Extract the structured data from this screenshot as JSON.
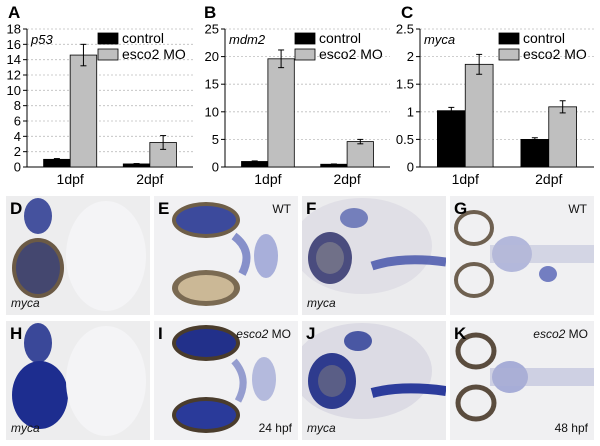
{
  "legend": {
    "control": "control",
    "treated": "esco2 MO"
  },
  "colors": {
    "control": "#000000",
    "treated": "#bfbfbf",
    "stain": "#2a3a9a"
  },
  "chart_data": [
    {
      "panel": "A",
      "gene": "p53",
      "type": "bar",
      "categories": [
        "1dpf",
        "2dpf"
      ],
      "series": [
        {
          "name": "control",
          "values": [
            1.0,
            0.4
          ],
          "errors": [
            0.1,
            0.05
          ]
        },
        {
          "name": "esco2 MO",
          "values": [
            14.6,
            3.2
          ],
          "errors": [
            1.4,
            0.9
          ]
        }
      ],
      "ylim": [
        0,
        18
      ],
      "yticks": [
        "0",
        "2",
        "4",
        "6",
        "8",
        "10",
        "12",
        "14",
        "16",
        "18"
      ],
      "grid": true,
      "legend": "top-right"
    },
    {
      "panel": "B",
      "gene": "mdm2",
      "type": "bar",
      "categories": [
        "1dpf",
        "2dpf"
      ],
      "series": [
        {
          "name": "control",
          "values": [
            1.0,
            0.5
          ],
          "errors": [
            0.1,
            0.05
          ]
        },
        {
          "name": "esco2 MO",
          "values": [
            19.6,
            4.6
          ],
          "errors": [
            1.6,
            0.4
          ]
        }
      ],
      "ylim": [
        0,
        25
      ],
      "yticks": [
        "0",
        "5",
        "10",
        "15",
        "20",
        "25"
      ],
      "grid": true,
      "legend": "top-right"
    },
    {
      "panel": "C",
      "gene": "myca",
      "type": "bar",
      "categories": [
        "1dpf",
        "2dpf"
      ],
      "series": [
        {
          "name": "control",
          "values": [
            1.02,
            0.5
          ],
          "errors": [
            0.06,
            0.03
          ]
        },
        {
          "name": "esco2 MO",
          "values": [
            1.86,
            1.09
          ],
          "errors": [
            0.18,
            0.11
          ]
        }
      ],
      "ylim": [
        0,
        2.5
      ],
      "yticks": [
        "0",
        "0.5",
        "1",
        "1.5",
        "2",
        "2.5"
      ],
      "grid": true,
      "legend": "top-right"
    }
  ],
  "photos": {
    "D": {
      "label": "D",
      "gene": "myca"
    },
    "E": {
      "label": "E",
      "condition": "WT"
    },
    "F": {
      "label": "F",
      "gene": "myca"
    },
    "G": {
      "label": "G",
      "condition": "WT"
    },
    "H": {
      "label": "H",
      "gene": "myca"
    },
    "I": {
      "label": "I",
      "condition": "esco2",
      "condition_suffix": " MO",
      "stage": "24 hpf"
    },
    "J": {
      "label": "J",
      "gene": "myca"
    },
    "K": {
      "label": "K",
      "condition": "esco2",
      "condition_suffix": " MO",
      "stage": "48 hpf"
    }
  }
}
